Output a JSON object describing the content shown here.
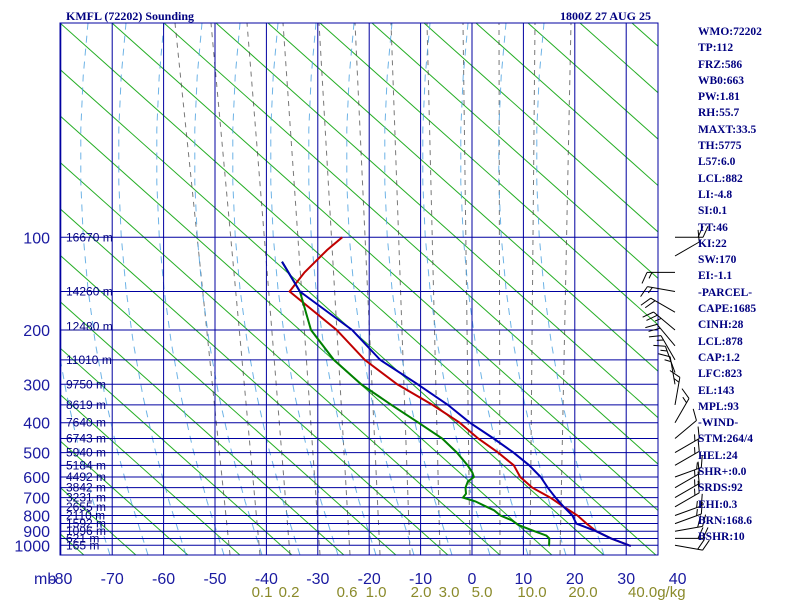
{
  "header": {
    "title": "KMFL (72202) Sounding",
    "datetime": "1800Z 27 AUG 25"
  },
  "indices": [
    "WMO:72202",
    "TP:112",
    "FRZ:586",
    "WB0:663",
    "PW:1.81",
    "RH:55.7",
    "MAXT:33.5",
    "TH:5775",
    "L57:6.0",
    "LCL:882",
    "LI:-4.8",
    "SI:0.1",
    "TT:46",
    "KI:22",
    "SW:170",
    "EI:-1.1",
    "-PARCEL-",
    "CAPE:1685",
    "CINH:28",
    "LCL:878",
    "CAP:1.2",
    "LFC:823",
    "EL:143",
    "MPL:93",
    "-WIND-",
    "STM:264/4",
    "HEL:24",
    "SHR+:0.0",
    "SRDS:92",
    "EHI:0.3",
    "BRN:168.6",
    "BSHR:10"
  ],
  "chart_data": {
    "type": "line",
    "title": "KMFL (72202) Sounding",
    "xlabel": "",
    "ylabel": "mb",
    "pressure_ticks": [
      100,
      200,
      300,
      400,
      500,
      600,
      700,
      800,
      900,
      1000
    ],
    "pressure_axis_label": "mb",
    "temperature_ticks": [
      -80,
      -70,
      -60,
      -50,
      -40,
      -30,
      -20,
      -10,
      0,
      10,
      20,
      30,
      40
    ],
    "mixing_ratio_ticks": [
      "0.1",
      "0.2",
      "0.6",
      "1.0",
      "2.0",
      "3.0",
      "5.0",
      "10.0",
      "20.0",
      "40.0"
    ],
    "mixing_ratio_unit": "g/kg",
    "height_labels": [
      {
        "p": 100,
        "label": "16670 m"
      },
      {
        "p": 150,
        "label": "14260 m"
      },
      {
        "p": 195,
        "label": "12480 m"
      },
      {
        "p": 250,
        "label": "11010 m"
      },
      {
        "p": 300,
        "label": "9750 m"
      },
      {
        "p": 350,
        "label": "8619 m"
      },
      {
        "p": 400,
        "label": "7640 m"
      },
      {
        "p": 450,
        "label": "6743 m"
      },
      {
        "p": 500,
        "label": "5940 m"
      },
      {
        "p": 550,
        "label": "5184 m"
      },
      {
        "p": 600,
        "label": "4492 m"
      },
      {
        "p": 650,
        "label": "3842 m"
      },
      {
        "p": 700,
        "label": "3231 m"
      },
      {
        "p": 750,
        "label": "2655 m"
      },
      {
        "p": 800,
        "label": "2110 m"
      },
      {
        "p": 850,
        "label": "1592 m"
      },
      {
        "p": 900,
        "label": "1096 m"
      },
      {
        "p": 950,
        "label": "621 m"
      },
      {
        "p": 1000,
        "label": "165 m"
      }
    ],
    "series": [
      {
        "color": "#c00000",
        "points": [
          [
            100,
            -72
          ],
          [
            110,
            -73
          ],
          [
            130,
            -74
          ],
          [
            150,
            -74
          ],
          [
            200,
            -59
          ],
          [
            250,
            -49
          ],
          [
            300,
            -39
          ],
          [
            350,
            -29
          ],
          [
            400,
            -21
          ],
          [
            450,
            -15
          ],
          [
            500,
            -9
          ],
          [
            550,
            -4
          ],
          [
            600,
            -1
          ],
          [
            650,
            3
          ],
          [
            700,
            8
          ],
          [
            750,
            12
          ],
          [
            800,
            16
          ],
          [
            850,
            19
          ],
          [
            900,
            22
          ],
          [
            950,
            26
          ],
          [
            1005,
            31
          ]
        ]
      },
      {
        "color": "#008000",
        "points": [
          [
            120,
            -80
          ],
          [
            150,
            -72
          ],
          [
            200,
            -64
          ],
          [
            250,
            -55
          ],
          [
            300,
            -46
          ],
          [
            350,
            -37
          ],
          [
            400,
            -29
          ],
          [
            450,
            -22
          ],
          [
            500,
            -17
          ],
          [
            550,
            -13
          ],
          [
            580,
            -11
          ],
          [
            600,
            -10
          ],
          [
            620,
            -10.5
          ],
          [
            650,
            -10
          ],
          [
            680,
            -9
          ],
          [
            700,
            -9
          ],
          [
            720,
            -6
          ],
          [
            750,
            -3
          ],
          [
            770,
            -1
          ],
          [
            800,
            1
          ],
          [
            830,
            4
          ],
          [
            860,
            6
          ],
          [
            900,
            10
          ],
          [
            930,
            13
          ],
          [
            950,
            14
          ],
          [
            1000,
            15
          ],
          [
            1005,
            15
          ]
        ]
      },
      {
        "color": "#0000b0",
        "points": [
          [
            120,
            -80
          ],
          [
            150,
            -72
          ],
          [
            200,
            -56
          ],
          [
            250,
            -46
          ],
          [
            300,
            -35
          ],
          [
            350,
            -26
          ],
          [
            400,
            -19
          ],
          [
            450,
            -12
          ],
          [
            500,
            -6
          ],
          [
            550,
            -1
          ],
          [
            600,
            3
          ],
          [
            650,
            6
          ],
          [
            700,
            9
          ],
          [
            750,
            12
          ],
          [
            800,
            15
          ],
          [
            850,
            17
          ],
          [
            900,
            22
          ],
          [
            950,
            26
          ],
          [
            1005,
            31
          ]
        ]
      }
    ],
    "wind_barbs": [
      {
        "p": 100,
        "dir": 90,
        "spd": 20
      },
      {
        "p": 115,
        "dir": 60,
        "spd": 10
      },
      {
        "p": 130,
        "dir": 270,
        "spd": 15
      },
      {
        "p": 150,
        "dir": 280,
        "spd": 15
      },
      {
        "p": 175,
        "dir": 300,
        "spd": 20
      },
      {
        "p": 200,
        "dir": 310,
        "spd": 25
      },
      {
        "p": 225,
        "dir": 320,
        "spd": 20
      },
      {
        "p": 250,
        "dir": 330,
        "spd": 15
      },
      {
        "p": 275,
        "dir": 340,
        "spd": 15
      },
      {
        "p": 300,
        "dir": 350,
        "spd": 15
      },
      {
        "p": 350,
        "dir": 10,
        "spd": 15
      },
      {
        "p": 400,
        "dir": 30,
        "spd": 15
      },
      {
        "p": 450,
        "dir": 50,
        "spd": 10
      },
      {
        "p": 500,
        "dir": 60,
        "spd": 15
      },
      {
        "p": 550,
        "dir": 60,
        "spd": 15
      },
      {
        "p": 600,
        "dir": 70,
        "spd": 15
      },
      {
        "p": 650,
        "dir": 60,
        "spd": 15
      },
      {
        "p": 700,
        "dir": 60,
        "spd": 15
      },
      {
        "p": 750,
        "dir": 60,
        "spd": 15
      },
      {
        "p": 800,
        "dir": 70,
        "spd": 15
      },
      {
        "p": 850,
        "dir": 70,
        "spd": 15
      },
      {
        "p": 900,
        "dir": 80,
        "spd": 20
      },
      {
        "p": 950,
        "dir": 90,
        "spd": 20
      },
      {
        "p": 1000,
        "dir": 100,
        "spd": 20
      }
    ]
  }
}
